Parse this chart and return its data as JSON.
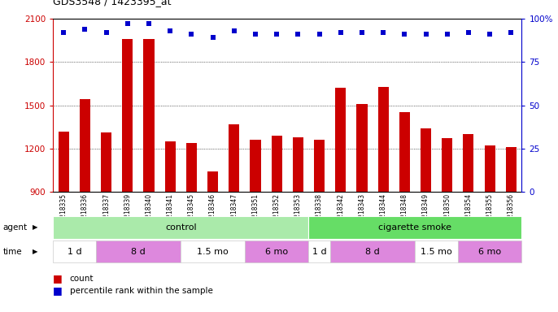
{
  "title": "GDS3548 / 1423395_at",
  "samples": [
    "GSM218335",
    "GSM218336",
    "GSM218337",
    "GSM218339",
    "GSM218340",
    "GSM218341",
    "GSM218345",
    "GSM218346",
    "GSM218347",
    "GSM218351",
    "GSM218352",
    "GSM218353",
    "GSM218338",
    "GSM218342",
    "GSM218343",
    "GSM218344",
    "GSM218348",
    "GSM218349",
    "GSM218350",
    "GSM218354",
    "GSM218355",
    "GSM218356"
  ],
  "counts": [
    1320,
    1540,
    1310,
    1960,
    1960,
    1250,
    1240,
    1040,
    1370,
    1260,
    1290,
    1280,
    1260,
    1620,
    1510,
    1630,
    1450,
    1340,
    1270,
    1300,
    1220,
    1210
  ],
  "percentile_ranks": [
    92,
    94,
    92,
    97,
    97,
    93,
    91,
    89,
    93,
    91,
    91,
    91,
    91,
    92,
    92,
    92,
    91,
    91,
    91,
    92,
    91,
    92
  ],
  "ymin": 900,
  "ymax": 2100,
  "yticks": [
    900,
    1200,
    1500,
    1800,
    2100
  ],
  "right_yticks": [
    0,
    25,
    50,
    75,
    100
  ],
  "bar_color": "#cc0000",
  "dot_color": "#0000cc",
  "plot_bg_color": "#ffffff",
  "fig_bg_color": "#ffffff",
  "agent_groups": [
    {
      "label": "control",
      "start": 0,
      "end": 12,
      "color": "#aaeaaa"
    },
    {
      "label": "cigarette smoke",
      "start": 12,
      "end": 22,
      "color": "#66dd66"
    }
  ],
  "time_groups": [
    {
      "label": "1 d",
      "start": 0,
      "end": 2,
      "color": "#ffffff"
    },
    {
      "label": "8 d",
      "start": 2,
      "end": 6,
      "color": "#dd88dd"
    },
    {
      "label": "1.5 mo",
      "start": 6,
      "end": 9,
      "color": "#ffffff"
    },
    {
      "label": "6 mo",
      "start": 9,
      "end": 12,
      "color": "#dd88dd"
    },
    {
      "label": "1 d",
      "start": 12,
      "end": 13,
      "color": "#ffffff"
    },
    {
      "label": "8 d",
      "start": 13,
      "end": 17,
      "color": "#dd88dd"
    },
    {
      "label": "1.5 mo",
      "start": 17,
      "end": 19,
      "color": "#ffffff"
    },
    {
      "label": "6 mo",
      "start": 19,
      "end": 22,
      "color": "#dd88dd"
    }
  ]
}
